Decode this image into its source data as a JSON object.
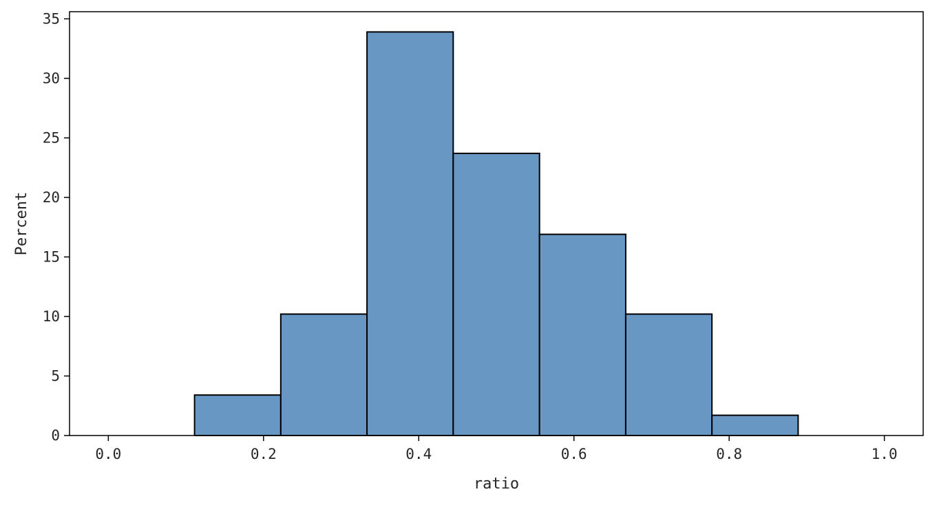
{
  "chart_data": {
    "type": "bar",
    "subtype": "histogram",
    "title": "",
    "xlabel": "ratio",
    "ylabel": "Percent",
    "xlim": [
      -0.05,
      1.05
    ],
    "ylim": [
      0,
      35.6
    ],
    "xticks": [
      {
        "value": 0.0,
        "label": "0.0"
      },
      {
        "value": 0.2,
        "label": "0.2"
      },
      {
        "value": 0.4,
        "label": "0.4"
      },
      {
        "value": 0.6,
        "label": "0.6"
      },
      {
        "value": 0.8,
        "label": "0.8"
      },
      {
        "value": 1.0,
        "label": "1.0"
      }
    ],
    "yticks": [
      {
        "value": 0,
        "label": "0"
      },
      {
        "value": 5,
        "label": "5"
      },
      {
        "value": 10,
        "label": "10"
      },
      {
        "value": 15,
        "label": "15"
      },
      {
        "value": 20,
        "label": "20"
      },
      {
        "value": 25,
        "label": "25"
      },
      {
        "value": 30,
        "label": "30"
      },
      {
        "value": 35,
        "label": "35"
      }
    ],
    "bin_edges": [
      0.0,
      0.1111,
      0.2222,
      0.3333,
      0.4444,
      0.5556,
      0.6667,
      0.7778,
      0.8889,
      1.0
    ],
    "values": [
      0.0,
      3.4,
      10.2,
      33.9,
      23.7,
      16.9,
      10.2,
      1.7,
      0.0
    ],
    "bar_color": "#6897c4",
    "edge_color": "#000000",
    "grid": false,
    "legend": false
  }
}
